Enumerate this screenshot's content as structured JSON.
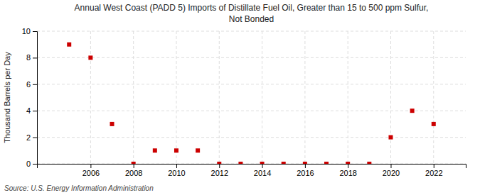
{
  "chart_data": {
    "type": "scatter",
    "title": "Annual West Coast (PADD 5) Imports of Distillate Fuel Oil, Greater than 15 to 500 ppm Sulfur,\nNot Bonded",
    "y_label": "Thousand Barrels per Day",
    "source": "Source: U.S. Energy Information Administration",
    "x": [
      2005,
      2006,
      2007,
      2008,
      2009,
      2010,
      2011,
      2012,
      2013,
      2014,
      2015,
      2016,
      2017,
      2018,
      2019,
      2020,
      2021,
      2022
    ],
    "values": [
      9.0,
      8.0,
      3.0,
      0.0,
      1.0,
      1.0,
      1.0,
      0.0,
      0.0,
      0.0,
      0.0,
      0.0,
      0.0,
      0.0,
      0.0,
      2.0,
      4.0,
      3.0
    ],
    "color": "#cc0000",
    "marker": "square",
    "grid": true,
    "xlim": [
      2003.5,
      2023.5
    ],
    "xticks": [
      2006,
      2008,
      2010,
      2012,
      2014,
      2016,
      2018,
      2020,
      2022
    ],
    "ylim": [
      0,
      10
    ],
    "yticks": [
      0,
      2,
      4,
      6,
      8,
      10
    ]
  }
}
